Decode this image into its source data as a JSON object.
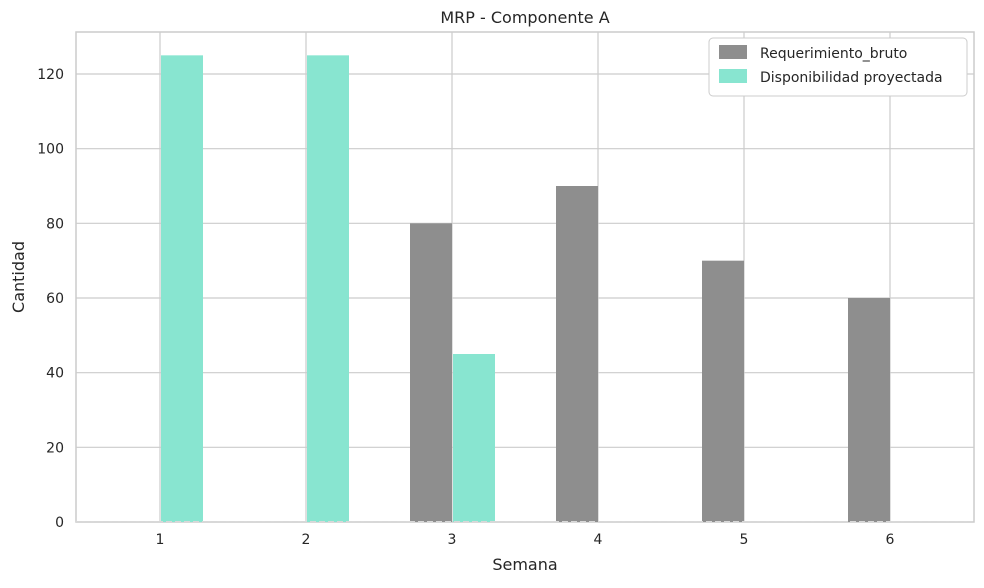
{
  "chart_data": {
    "type": "bar",
    "title": "MRP - Componente A",
    "xlabel": "Semana",
    "ylabel": "Cantidad",
    "categories": [
      "1",
      "2",
      "3",
      "4",
      "5",
      "6"
    ],
    "series": [
      {
        "name": "Requerimiento_bruto",
        "values": [
          0,
          0,
          80,
          90,
          70,
          60
        ],
        "color": "#8e8e8e"
      },
      {
        "name": "Disponibilidad proyectada",
        "values": [
          125,
          125,
          45,
          0,
          0,
          0
        ],
        "color": "#88e5d0"
      }
    ],
    "ylim": [
      0,
      131.25
    ],
    "yticks": [
      0,
      20,
      40,
      60,
      80,
      100,
      120
    ],
    "grid": true,
    "legend_position": "top-right"
  }
}
